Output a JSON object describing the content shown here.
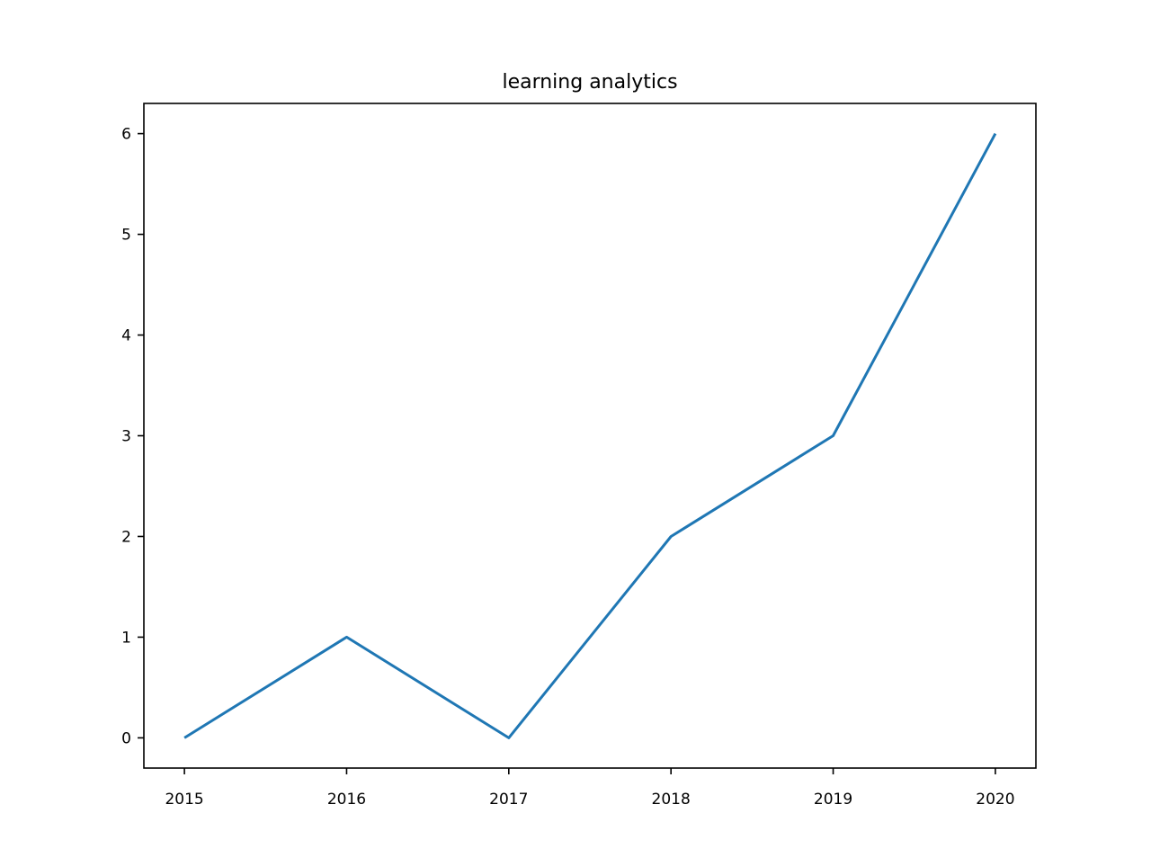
{
  "chart_data": {
    "type": "line",
    "title": "learning analytics",
    "xlabel": "",
    "ylabel": "",
    "x": [
      2015,
      2016,
      2017,
      2018,
      2019,
      2020
    ],
    "series": [
      {
        "values": [
          0,
          1,
          0,
          2,
          3,
          6
        ],
        "color": "#1f77b4"
      }
    ],
    "xticks": [
      "2015",
      "2016",
      "2017",
      "2018",
      "2019",
      "2020"
    ],
    "yticks": [
      "0",
      "1",
      "2",
      "3",
      "4",
      "5",
      "6"
    ],
    "xlim": [
      2014.75,
      2020.25
    ],
    "ylim": [
      -0.3,
      6.3
    ],
    "grid": false,
    "legend": "none"
  }
}
